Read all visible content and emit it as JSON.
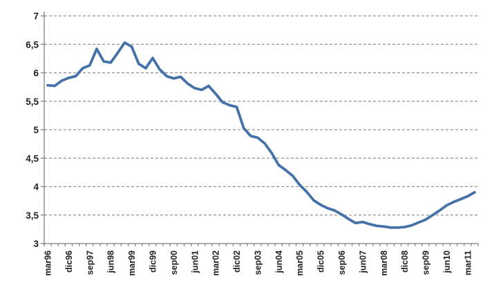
{
  "chart_data": {
    "type": "line",
    "title": "",
    "xlabel": "",
    "ylabel": "",
    "ylim": [
      3,
      7
    ],
    "y_tick_step": 0.5,
    "y_tick_labels": [
      "7",
      "6,5",
      "6",
      "5,5",
      "5",
      "4,5",
      "4",
      "3,5",
      "3"
    ],
    "y_tick_values": [
      7,
      6.5,
      6,
      5.5,
      5,
      4.5,
      4,
      3.5,
      3
    ],
    "grid": "dashed-horizontal",
    "legend_position": "none",
    "line_color": "#4472A8",
    "grid_color": "#909090",
    "axis_color": "#7f7f7f",
    "label_color": "#1f1f1f",
    "x_label_every_n": 3,
    "x_axis_shown_labels": [
      "mar96",
      "dic96",
      "sep97",
      "jun98",
      "mar99",
      "dic99",
      "sep00",
      "jun01",
      "mar02",
      "dic02",
      "sep03",
      "jun04",
      "mar05",
      "dic05",
      "sep06",
      "jun07",
      "mar08",
      "dic08",
      "sep09",
      "jun10",
      "mar11"
    ],
    "categories": [
      "mar96",
      "jun96",
      "sep96",
      "dic96",
      "mar97",
      "jun97",
      "sep97",
      "dic97",
      "mar98",
      "jun98",
      "sep98",
      "dic98",
      "mar99",
      "jun99",
      "sep99",
      "dic99",
      "mar00",
      "jun00",
      "sep00",
      "dic00",
      "mar01",
      "jun01",
      "sep01",
      "dic01",
      "mar02",
      "jun02",
      "sep02",
      "dic02",
      "mar03",
      "jun03",
      "sep03",
      "dic03",
      "mar04",
      "jun04",
      "sep04",
      "dic04",
      "mar05",
      "jun05",
      "sep05",
      "dic05",
      "mar06",
      "jun06",
      "sep06",
      "dic06",
      "mar07",
      "jun07",
      "sep07",
      "dic07",
      "mar08",
      "jun08",
      "sep08",
      "dic08",
      "mar09",
      "jun09",
      "sep09",
      "dic09",
      "mar10",
      "jun10",
      "sep10",
      "dic10",
      "mar11",
      "jun11"
    ],
    "values": [
      5.78,
      5.77,
      5.86,
      5.91,
      5.94,
      6.08,
      6.13,
      6.42,
      6.2,
      6.18,
      6.35,
      6.53,
      6.46,
      6.16,
      6.08,
      6.26,
      6.06,
      5.94,
      5.9,
      5.93,
      5.81,
      5.73,
      5.7,
      5.77,
      5.63,
      5.48,
      5.43,
      5.4,
      5.03,
      4.89,
      4.86,
      4.76,
      4.59,
      4.38,
      4.29,
      4.19,
      4.03,
      3.91,
      3.76,
      3.68,
      3.62,
      3.58,
      3.51,
      3.43,
      3.36,
      3.38,
      3.34,
      3.31,
      3.3,
      3.28,
      3.28,
      3.29,
      3.32,
      3.37,
      3.42,
      3.5,
      3.58,
      3.67,
      3.73,
      3.78,
      3.83,
      3.9
    ]
  }
}
